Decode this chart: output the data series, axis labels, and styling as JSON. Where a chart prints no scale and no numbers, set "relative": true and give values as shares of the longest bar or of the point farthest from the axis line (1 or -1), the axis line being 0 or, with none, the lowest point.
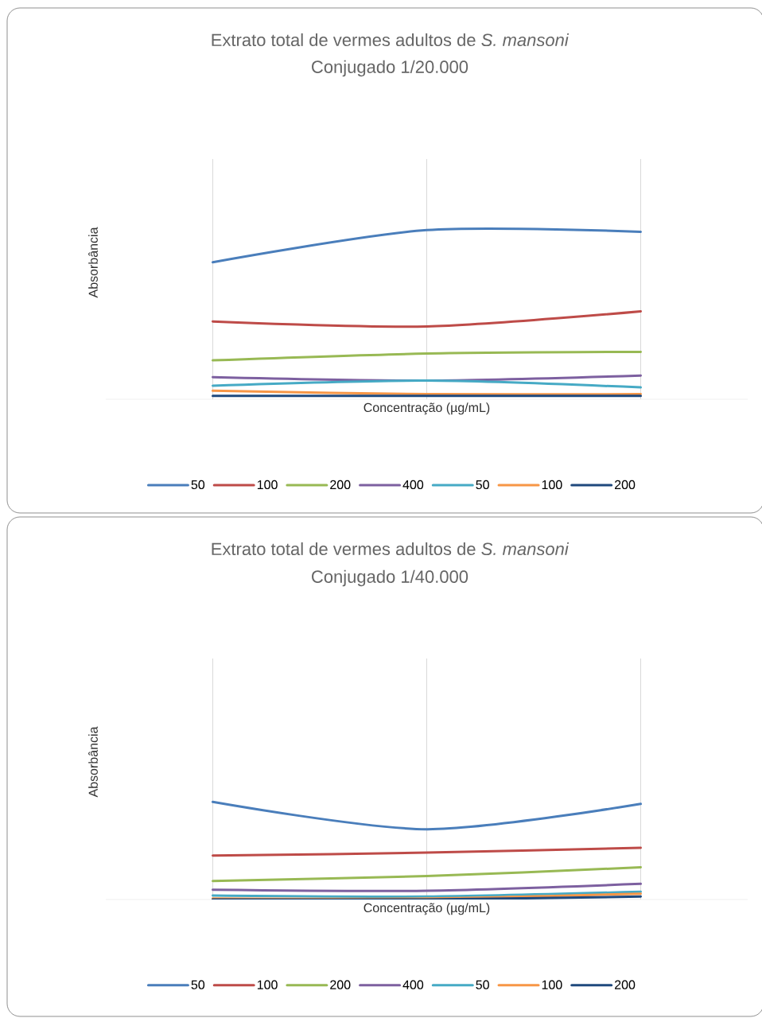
{
  "chart_data": [
    {
      "type": "line",
      "title": "Extrato total de vermes adultos de *S. mansoni*",
      "subtitle": "Conjugado 1/20.000",
      "xlabel": "Concentração (µg/mL)",
      "ylabel": "Absorbância",
      "relative": true,
      "grid": "x",
      "legend": "bottom",
      "categories": [
        null,
        null,
        null
      ],
      "series": [
        {
          "name": "50",
          "color": "#4a7ebb",
          "values": [
            0.81,
            1,
            0.99
          ]
        },
        {
          "name": "100",
          "color": "#be4b48",
          "values": [
            0.46,
            0.43,
            0.52
          ]
        },
        {
          "name": "200",
          "color": "#98b954",
          "values": [
            0.23,
            0.27,
            0.28
          ]
        },
        {
          "name": "400",
          "color": "#7d60a0",
          "values": [
            0.13,
            0.11,
            0.14
          ]
        },
        {
          "name": "50",
          "color": "#46aac5",
          "values": [
            0.08,
            0.11,
            0.07
          ]
        },
        {
          "name": "100",
          "color": "#f79646",
          "values": [
            0.05,
            0.03,
            0.03
          ]
        },
        {
          "name": "200",
          "color": "#1f497d",
          "values": [
            0.02,
            0.02,
            0.02
          ]
        }
      ]
    },
    {
      "type": "line",
      "title": "Extrato total de vermes adultos de *S. mansoni*",
      "subtitle": "Conjugado 1/40.000",
      "xlabel": "Concentração (µg/mL)",
      "ylabel": "Absorbância",
      "relative": true,
      "grid": "x",
      "legend": "bottom",
      "categories": [
        null,
        null,
        null
      ],
      "series": [
        {
          "name": "50",
          "color": "#4a7ebb",
          "values": [
            1,
            0.72,
            0.98
          ]
        },
        {
          "name": "100",
          "color": "#be4b48",
          "values": [
            0.45,
            0.48,
            0.53
          ]
        },
        {
          "name": "200",
          "color": "#98b954",
          "values": [
            0.19,
            0.24,
            0.33
          ]
        },
        {
          "name": "400",
          "color": "#7d60a0",
          "values": [
            0.1,
            0.09,
            0.16
          ]
        },
        {
          "name": "50",
          "color": "#46aac5",
          "values": [
            0.04,
            0.03,
            0.08
          ]
        },
        {
          "name": "100",
          "color": "#f79646",
          "values": [
            0.01,
            0.01,
            0.06
          ]
        },
        {
          "name": "200",
          "color": "#1f497d",
          "values": [
            0,
            0,
            0.03
          ]
        }
      ]
    }
  ]
}
